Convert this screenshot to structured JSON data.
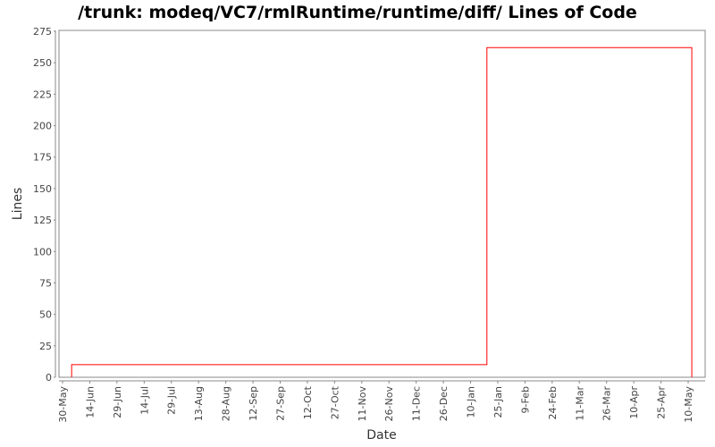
{
  "chart_data": {
    "type": "line",
    "step": true,
    "title": "/trunk: modeq/VC7/rmlRuntime/runtime/diff/ Lines of Code",
    "xlabel": "Date",
    "ylabel": "Lines",
    "ylim": [
      0,
      275
    ],
    "yticks": [
      0,
      25,
      50,
      75,
      100,
      125,
      150,
      175,
      200,
      225,
      250,
      275
    ],
    "xticks": [
      "30-May",
      "14-Jun",
      "29-Jun",
      "14-Jul",
      "29-Jul",
      "13-Aug",
      "28-Aug",
      "12-Sep",
      "27-Sep",
      "12-Oct",
      "27-Oct",
      "11-Nov",
      "26-Nov",
      "11-Dec",
      "26-Dec",
      "10-Jan",
      "25-Jan",
      "9-Feb",
      "24-Feb",
      "11-Mar",
      "26-Mar",
      "10-Apr",
      "25-Apr",
      "10-May"
    ],
    "series": [
      {
        "color": "#ff0000",
        "points": [
          {
            "x": "4-Jun",
            "y": 10
          },
          {
            "x": "19-Jan",
            "y": 262
          },
          {
            "x": "12-May",
            "y": 262
          }
        ]
      }
    ],
    "grid": false,
    "legend": "none"
  }
}
